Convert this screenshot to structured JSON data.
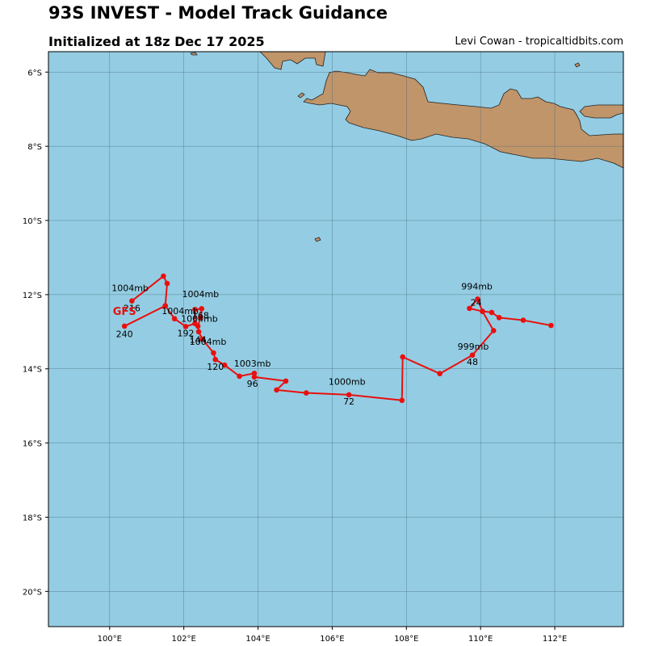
{
  "header": {
    "title": "93S INVEST - Model Track Guidance",
    "subtitle": "Initialized at 18z Dec 17 2025",
    "credit": "Levi Cowan - tropicaltidbits.com"
  },
  "colors": {
    "ocean": "#94CDE3",
    "land": "#C0956A",
    "track": "#E8100F",
    "grid": "#3E6275"
  },
  "map": {
    "lon_range": [
      98.35,
      113.85
    ],
    "lat_range": [
      -20.95,
      -5.45
    ],
    "lon_ticks": [
      {
        "value": 100,
        "label": "100°E"
      },
      {
        "value": 102,
        "label": "102°E"
      },
      {
        "value": 104,
        "label": "104°E"
      },
      {
        "value": 106,
        "label": "106°E"
      },
      {
        "value": 108,
        "label": "108°E"
      },
      {
        "value": 110,
        "label": "110°E"
      },
      {
        "value": 112,
        "label": "112°E"
      }
    ],
    "lat_ticks": [
      {
        "value": -6,
        "label": "6°S"
      },
      {
        "value": -8,
        "label": "8°S"
      },
      {
        "value": -10,
        "label": "10°S"
      },
      {
        "value": -12,
        "label": "12°S"
      },
      {
        "value": -14,
        "label": "14°S"
      },
      {
        "value": -16,
        "label": "16°S"
      },
      {
        "value": -18,
        "label": "18°S"
      },
      {
        "value": -20,
        "label": "20°S"
      }
    ]
  },
  "model": {
    "name": "GFS",
    "name_position": [
      100.4,
      -12.55
    ],
    "track": [
      [
        111.9,
        -12.83
      ],
      [
        111.15,
        -12.69
      ],
      [
        110.5,
        -12.62
      ],
      [
        110.3,
        -12.48
      ],
      [
        110.05,
        -12.45
      ],
      [
        109.92,
        -12.12
      ],
      [
        109.7,
        -12.37
      ],
      [
        110.05,
        -12.45
      ],
      [
        110.35,
        -12.97
      ],
      [
        109.78,
        -13.63
      ],
      [
        108.9,
        -14.13
      ],
      [
        107.9,
        -13.68
      ],
      [
        107.88,
        -14.85
      ],
      [
        106.45,
        -14.7
      ],
      [
        105.3,
        -14.65
      ],
      [
        104.5,
        -14.57
      ],
      [
        104.75,
        -14.33
      ],
      [
        103.9,
        -14.22
      ],
      [
        103.9,
        -14.12
      ],
      [
        103.5,
        -14.2
      ],
      [
        103.1,
        -13.9
      ],
      [
        102.85,
        -13.75
      ],
      [
        102.8,
        -13.57
      ],
      [
        102.5,
        -13.2
      ],
      [
        102.4,
        -13.0
      ],
      [
        102.38,
        -12.85
      ],
      [
        102.45,
        -12.62
      ],
      [
        102.48,
        -12.38
      ],
      [
        102.3,
        -12.4
      ],
      [
        102.3,
        -12.78
      ],
      [
        102.05,
        -12.86
      ],
      [
        101.75,
        -12.65
      ],
      [
        101.5,
        -12.3
      ],
      [
        100.4,
        -12.85
      ]
    ],
    "loop": [
      [
        100.6,
        -12.17
      ],
      [
        101.45,
        -11.5
      ],
      [
        101.55,
        -11.7
      ],
      [
        101.5,
        -12.3
      ]
    ],
    "pressure_labels": [
      {
        "text": "994mb",
        "at": [
          109.9,
          -11.86
        ]
      },
      {
        "text": "999mb",
        "at": [
          109.8,
          -13.48
        ]
      },
      {
        "text": "1000mb",
        "at": [
          106.4,
          -14.43
        ]
      },
      {
        "text": "1003mb",
        "at": [
          103.85,
          -13.94
        ]
      },
      {
        "text": "1004mb",
        "at": [
          102.65,
          -13.35
        ]
      },
      {
        "text": "1004mb",
        "at": [
          102.42,
          -12.73
        ]
      },
      {
        "text": "1004mb",
        "at": [
          101.9,
          -12.52
        ]
      },
      {
        "text": "1004mb",
        "at": [
          102.45,
          -12.07
        ]
      },
      {
        "text": "1004mb",
        "at": [
          100.55,
          -11.9
        ]
      }
    ],
    "hour_labels": [
      {
        "text": "24",
        "at": [
          109.88,
          -12.3
        ]
      },
      {
        "text": "48",
        "at": [
          109.78,
          -13.9
        ]
      },
      {
        "text": "72",
        "at": [
          106.45,
          -14.96
        ]
      },
      {
        "text": "96",
        "at": [
          103.85,
          -14.48
        ]
      },
      {
        "text": "120",
        "at": [
          102.85,
          -14.03
        ]
      },
      {
        "text": "144",
        "at": [
          102.38,
          -13.3
        ]
      },
      {
        "text": "168",
        "at": [
          102.45,
          -12.65
        ]
      },
      {
        "text": "192",
        "at": [
          102.05,
          -13.12
        ]
      },
      {
        "text": "216",
        "at": [
          100.6,
          -12.45
        ]
      },
      {
        "text": "240",
        "at": [
          100.4,
          -13.15
        ]
      }
    ]
  }
}
